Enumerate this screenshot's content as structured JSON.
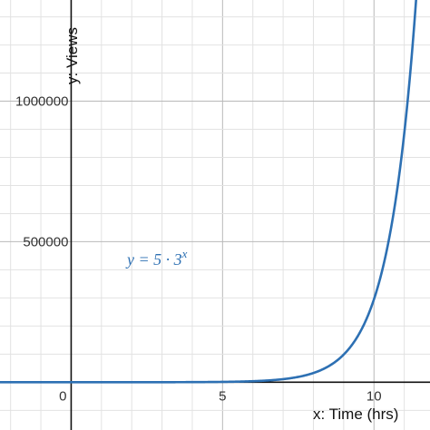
{
  "chart_data": {
    "type": "line",
    "title": "",
    "xlabel": "x: Time (hrs)",
    "ylabel": "y: Views",
    "xlim": [
      -2.35,
      11.85
    ],
    "ylim": [
      -170000,
      1360000
    ],
    "grid": true,
    "x_ticks": [
      {
        "value": 0,
        "label": "0"
      },
      {
        "value": 5,
        "label": "5"
      },
      {
        "value": 10,
        "label": "10"
      }
    ],
    "y_ticks": [
      {
        "value": 500000,
        "label": "500000"
      },
      {
        "value": 1000000,
        "label": "1000000"
      }
    ],
    "series": [
      {
        "name": "y = 5 · 3^x",
        "color": "#2d70b3",
        "formula": {
          "a": 5,
          "b": 3
        },
        "label_parts": {
          "lhs": "y = 5 · 3",
          "exponent": "x"
        }
      }
    ]
  }
}
